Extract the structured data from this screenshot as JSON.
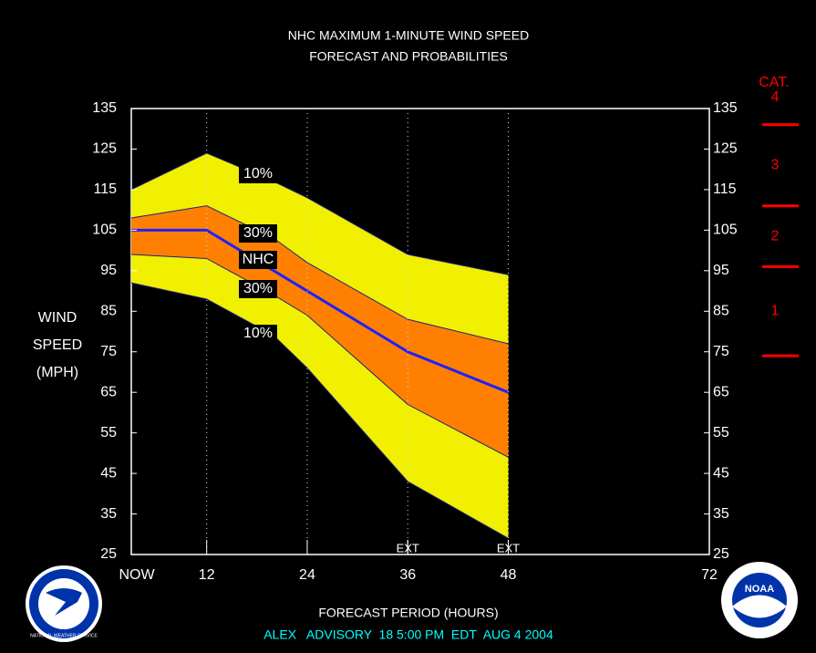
{
  "chart_data": {
    "type": "band",
    "title": "NHC MAXIMUM 1-MINUTE WIND SPEED",
    "subtitle": "FORECAST AND PROBABILITIES",
    "ylabel": [
      "WIND",
      "SPEED",
      "(MPH)"
    ],
    "xlabel": "FORECAST PERIOD (HOURS)",
    "footer": "ALEX   ADVISORY  18 5:00 PM  EDT  AUG 4 2004",
    "x": [
      3,
      12,
      20,
      24,
      36,
      48
    ],
    "series": [
      {
        "name": "10%",
        "color": "#f0f000",
        "values": [
          115,
          124,
          117,
          113,
          99,
          94
        ]
      },
      {
        "name": "30%",
        "color": "#ff8000",
        "values": [
          108,
          111,
          103,
          97,
          83,
          77
        ]
      },
      {
        "name": "NHC",
        "color": "#2020ff",
        "values": [
          105,
          105,
          95,
          90,
          75,
          65
        ]
      },
      {
        "name": "30%",
        "color": "#ff8000",
        "values": [
          99,
          98,
          89,
          84,
          62,
          49
        ]
      },
      {
        "name": "10%",
        "color": "#f0f000",
        "values": [
          92,
          88,
          79,
          71,
          43,
          29
        ]
      }
    ],
    "xlim": [
      3,
      72
    ],
    "xticks": [
      {
        "value": 3,
        "label": "NOW"
      },
      12,
      24,
      36,
      48,
      72
    ],
    "ylim": [
      25,
      135
    ],
    "yticks": [
      25,
      35,
      45,
      55,
      65,
      75,
      85,
      95,
      105,
      115,
      125,
      135
    ],
    "ext_marks": [
      {
        "value": 36,
        "label": "EXT"
      },
      {
        "value": 48,
        "label": "EXT"
      }
    ],
    "category_scale": {
      "title": "CAT.",
      "labels": [
        "1",
        "2",
        "3",
        "4"
      ],
      "thresholds": [
        74,
        96,
        111,
        131
      ],
      "color": "#ff0000"
    },
    "logos": [
      "NATIONAL WEATHER SERVICE",
      "NOAA"
    ]
  }
}
